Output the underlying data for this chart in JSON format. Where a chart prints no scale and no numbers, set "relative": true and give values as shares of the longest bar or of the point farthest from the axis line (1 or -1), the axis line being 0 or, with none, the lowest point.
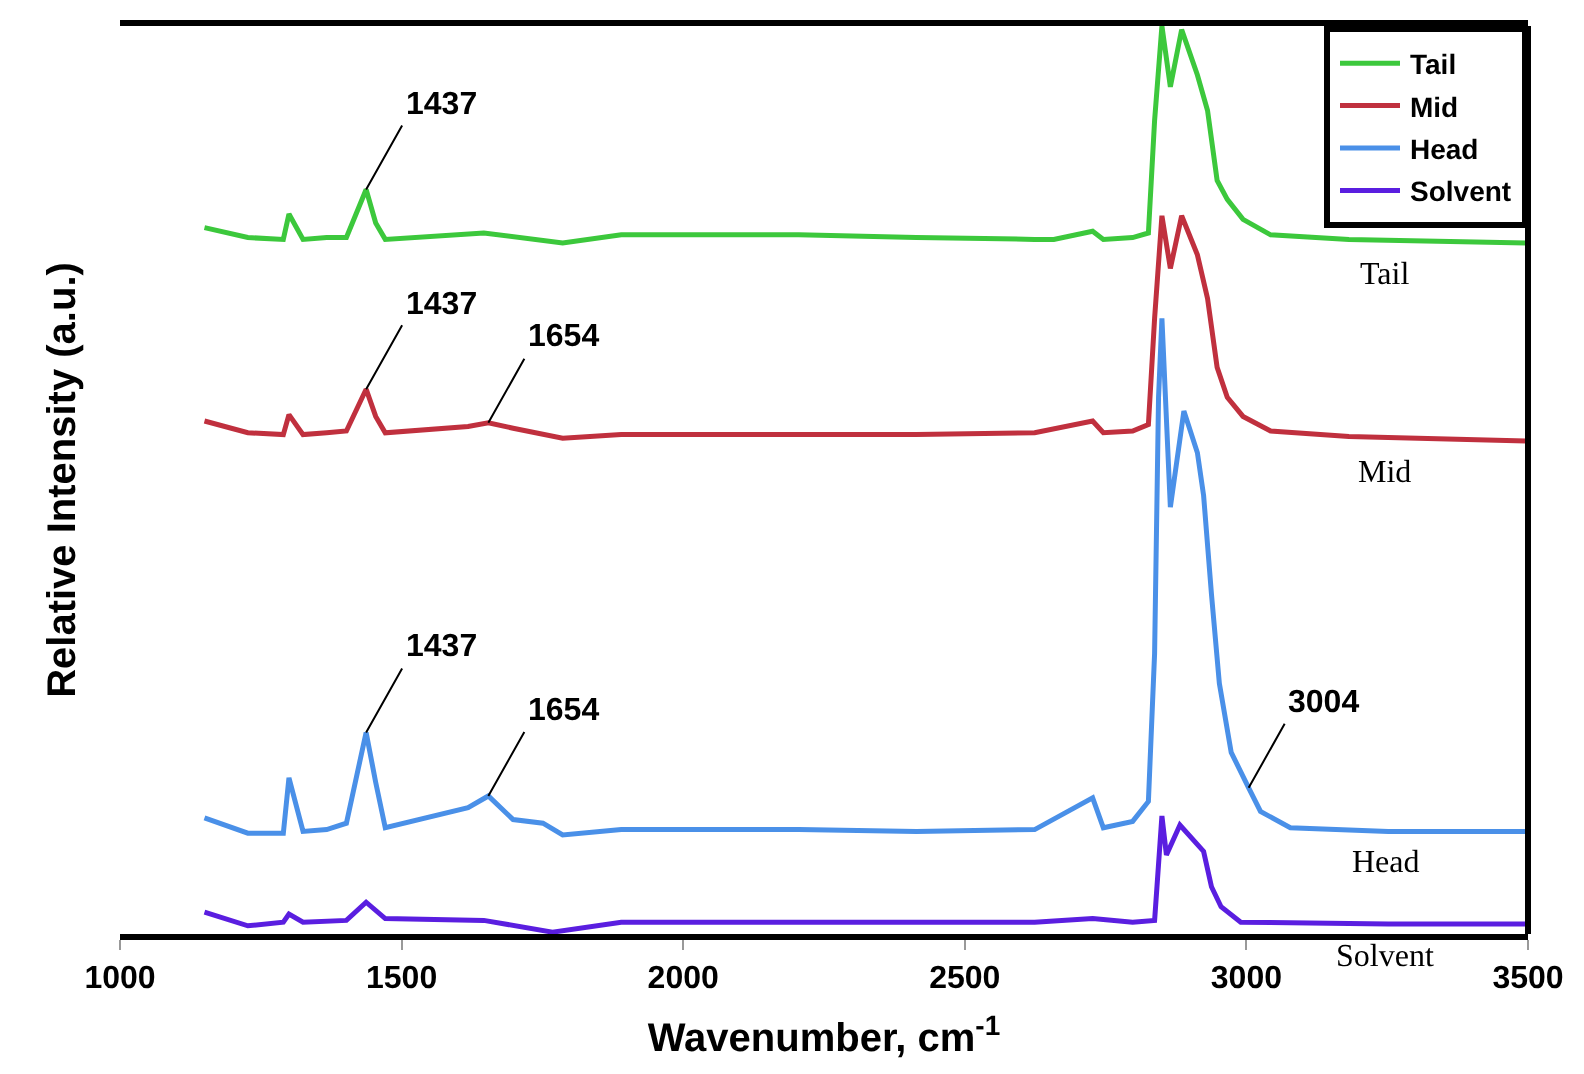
{
  "chart_data": {
    "type": "line",
    "relative": true,
    "xlabel": "Wavenumber, cm$^{-1}$",
    "ylabel": "Relative Intensity (a.u.)",
    "xlim": [
      1000,
      3500
    ],
    "xticks": [
      1000,
      1500,
      2000,
      2500,
      3000,
      3500
    ],
    "legend": "top right",
    "marker": "none",
    "line_style": "solid",
    "series": [
      {
        "name": "Tail",
        "color": "#3cc83c",
        "x": [
          1150,
          1227,
          1290,
          1300,
          1325,
          1367,
          1402,
          1437,
          1454,
          1471,
          1646,
          1786,
          1890,
          2205,
          2414,
          2624,
          2658,
          2727,
          2746,
          2798,
          2826,
          2837,
          2850,
          2865,
          2885,
          2913,
          2931,
          2948,
          2966,
          2994,
          3043,
          3182,
          3497
        ],
        "values": [
          0.778,
          0.767,
          0.765,
          0.793,
          0.765,
          0.767,
          0.767,
          0.82,
          0.783,
          0.765,
          0.772,
          0.761,
          0.77,
          0.77,
          0.767,
          0.765,
          0.765,
          0.774,
          0.765,
          0.767,
          0.772,
          0.896,
          1.0,
          0.933,
          0.996,
          0.946,
          0.907,
          0.83,
          0.809,
          0.787,
          0.77,
          0.765,
          0.761
        ]
      },
      {
        "name": "Mid",
        "color": "#c0303e",
        "x": [
          1150,
          1227,
          1290,
          1300,
          1325,
          1367,
          1402,
          1437,
          1454,
          1471,
          1618,
          1654,
          1698,
          1786,
          1890,
          2205,
          2414,
          2624,
          2727,
          2746,
          2798,
          2826,
          2837,
          2850,
          2865,
          2885,
          2913,
          2931,
          2948,
          2966,
          2994,
          3043,
          3182,
          3497
        ],
        "values": [
          0.565,
          0.552,
          0.55,
          0.572,
          0.55,
          0.552,
          0.554,
          0.6,
          0.57,
          0.552,
          0.559,
          0.563,
          0.557,
          0.546,
          0.55,
          0.55,
          0.55,
          0.552,
          0.565,
          0.552,
          0.554,
          0.561,
          0.678,
          0.791,
          0.733,
          0.791,
          0.748,
          0.7,
          0.624,
          0.591,
          0.57,
          0.554,
          0.548,
          0.543
        ]
      },
      {
        "name": "Head",
        "color": "#4a90e8",
        "x": [
          1150,
          1227,
          1290,
          1300,
          1325,
          1367,
          1402,
          1437,
          1454,
          1471,
          1618,
          1654,
          1698,
          1751,
          1786,
          1890,
          2205,
          2414,
          2624,
          2727,
          2746,
          2798,
          2826,
          2837,
          2844,
          2850,
          2865,
          2889,
          2913,
          2924,
          2938,
          2952,
          2973,
          3004,
          3025,
          3078,
          3252,
          3497
        ],
        "values": [
          0.128,
          0.111,
          0.111,
          0.172,
          0.113,
          0.115,
          0.122,
          0.222,
          0.167,
          0.117,
          0.139,
          0.152,
          0.126,
          0.122,
          0.109,
          0.115,
          0.115,
          0.113,
          0.115,
          0.15,
          0.117,
          0.124,
          0.146,
          0.309,
          0.591,
          0.678,
          0.47,
          0.576,
          0.53,
          0.483,
          0.374,
          0.276,
          0.2,
          0.161,
          0.135,
          0.117,
          0.113,
          0.113
        ]
      },
      {
        "name": "Solvent",
        "color": "#5a1ee0",
        "x": [
          1150,
          1227,
          1290,
          1300,
          1325,
          1402,
          1437,
          1471,
          1646,
          1768,
          1890,
          2205,
          2414,
          2624,
          2727,
          2798,
          2837,
          2850,
          2858,
          2882,
          2924,
          2938,
          2955,
          2990,
          3252,
          3497
        ],
        "values": [
          0.024,
          0.009,
          0.013,
          0.022,
          0.013,
          0.015,
          0.035,
          0.017,
          0.015,
          0.002,
          0.013,
          0.013,
          0.013,
          0.013,
          0.017,
          0.013,
          0.015,
          0.13,
          0.087,
          0.12,
          0.091,
          0.052,
          0.03,
          0.013,
          0.011,
          0.011
        ]
      }
    ],
    "annotations": [
      {
        "text": "1437",
        "x": 1437,
        "y": 0.82
      },
      {
        "text": "1437",
        "x": 1437,
        "y": 0.6
      },
      {
        "text": "1654",
        "x": 1654,
        "y": 0.563
      },
      {
        "text": "1437",
        "x": 1437,
        "y": 0.222
      },
      {
        "text": "1654",
        "x": 1654,
        "y": 0.152
      },
      {
        "text": "3004",
        "x": 3004,
        "y": 0.161
      },
      "Tail",
      "Mid",
      "Head",
      "Solvent"
    ]
  }
}
